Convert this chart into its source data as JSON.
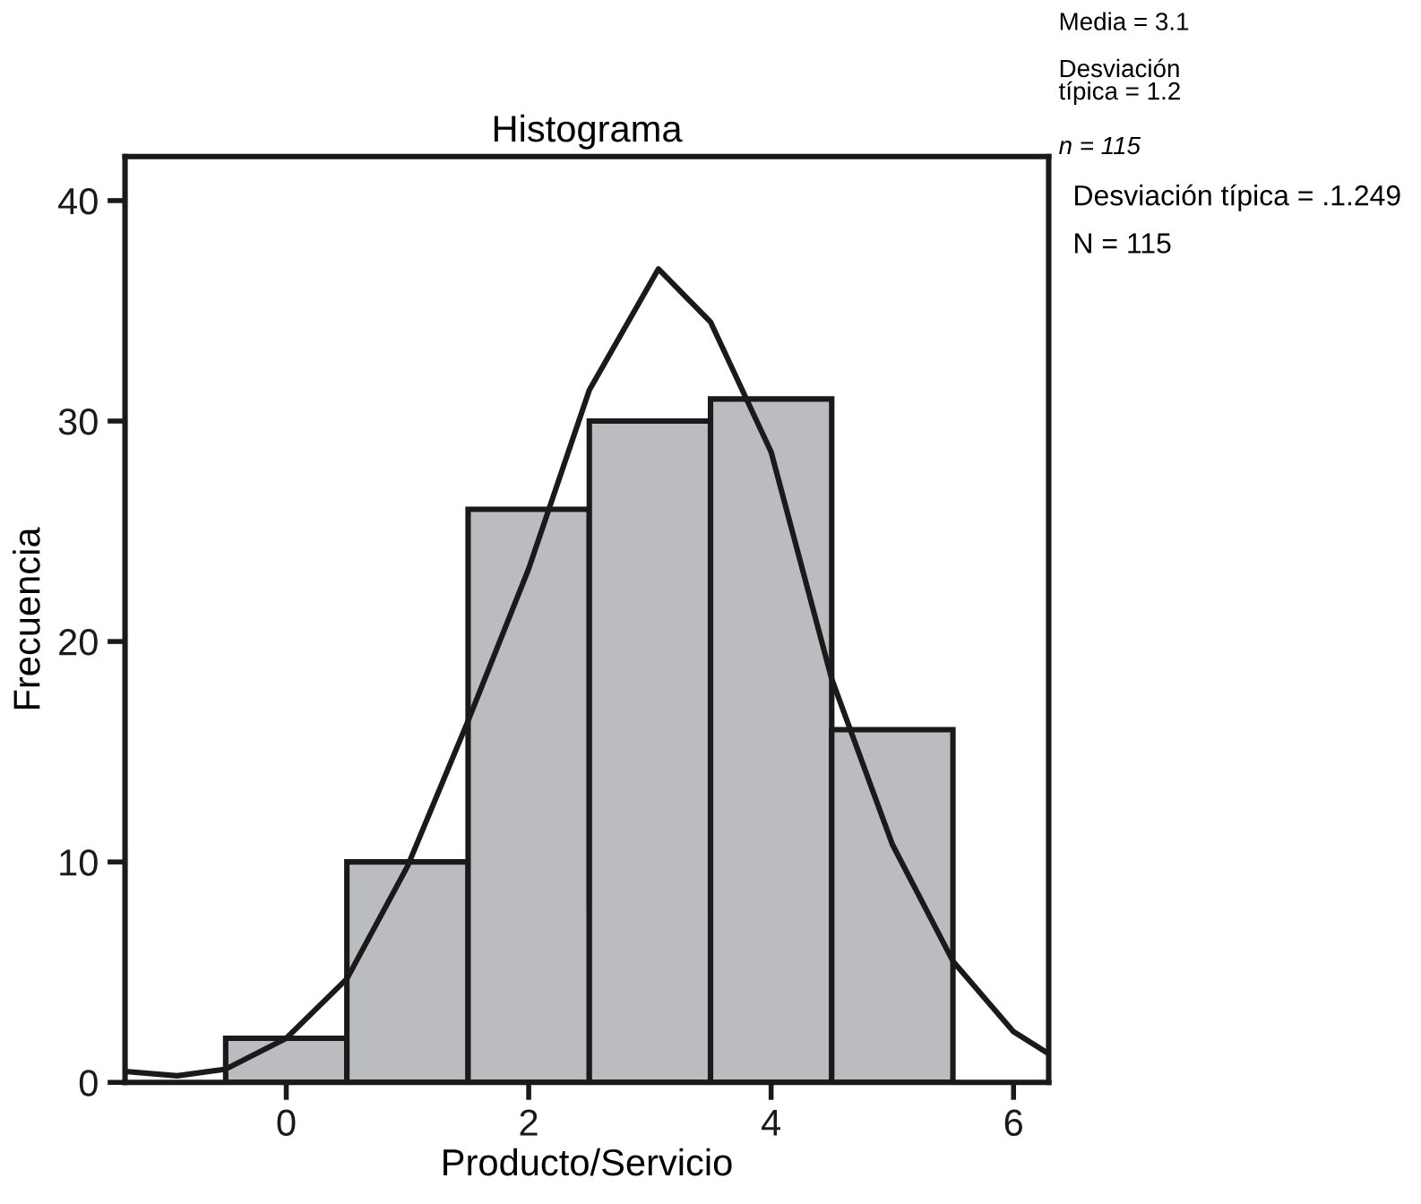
{
  "chart_data": {
    "type": "histogram",
    "title": "Histograma",
    "xlabel": "Producto/Servicio",
    "ylabel": "Frecuencia",
    "bins": [
      -0.5,
      0.5,
      1.5,
      2.5,
      3.5,
      4.5,
      5.5
    ],
    "values": [
      2,
      10,
      26,
      30,
      31,
      16
    ],
    "color": "#bbbcc0",
    "series": [
      {
        "type": "line",
        "color": "#1a1a1a",
        "x": [
          -1.33,
          -0.9,
          -0.5,
          0,
          0.5,
          1,
          1.5,
          2,
          2.5,
          3.07,
          3.5,
          4,
          4.5,
          5,
          5.5,
          6,
          6.29
        ],
        "values": [
          0.5,
          0.3,
          0.6,
          2.0,
          4.7,
          9.8,
          16.4,
          23.3,
          31.4,
          36.9,
          34.5,
          28.6,
          18.3,
          10.8,
          5.5,
          2.3,
          1.3
        ]
      }
    ],
    "xlim": [
      -1.33,
      6.29
    ],
    "ylim": [
      0,
      42
    ],
    "xticks": [
      0,
      2,
      4,
      6
    ],
    "yticks": [
      0,
      10,
      20,
      30,
      40
    ],
    "grid": false,
    "legend": false,
    "annotations": [
      "Media = 3.1",
      "Desviación\ntípica = 1.2",
      "n = 115",
      "Desviación típica = .1.249",
      "N = 115"
    ]
  }
}
